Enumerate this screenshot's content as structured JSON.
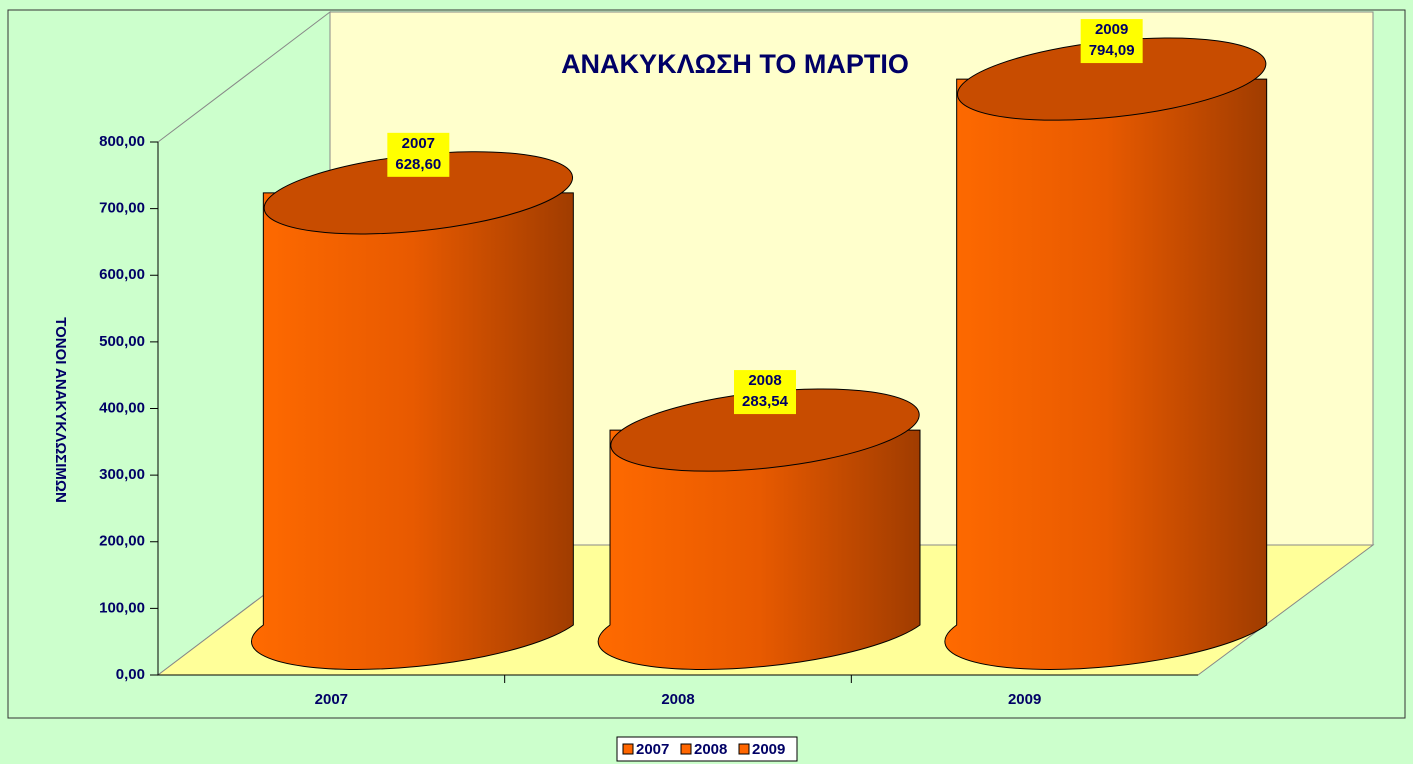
{
  "chart_data": {
    "type": "cylinder",
    "title": "ΑΝΑΚΥΚΛΩΣΗ ΤΟ ΜΑΡΤΙΟ",
    "y_label": "ΤΟΝΟΙ ΑΝΑΚΥΚΛΩΣΙΜΩΝ",
    "categories": [
      "2007",
      "2008",
      "2009"
    ],
    "values": [
      628.6,
      283.54,
      794.09
    ],
    "value_labels": [
      "628,60",
      "283,54",
      "794,09"
    ],
    "color": "#ff6600",
    "ylim": [
      0,
      800
    ],
    "yticks": [
      {
        "value": 0,
        "label": "0,00"
      },
      {
        "value": 100,
        "label": "100,00"
      },
      {
        "value": 200,
        "label": "200,00"
      },
      {
        "value": 300,
        "label": "300,00"
      },
      {
        "value": 400,
        "label": "400,00"
      },
      {
        "value": 500,
        "label": "500,00"
      },
      {
        "value": 600,
        "label": "600,00"
      },
      {
        "value": 700,
        "label": "700,00"
      },
      {
        "value": 800,
        "label": "800,00"
      }
    ],
    "grid": false,
    "legend": "bottom"
  }
}
